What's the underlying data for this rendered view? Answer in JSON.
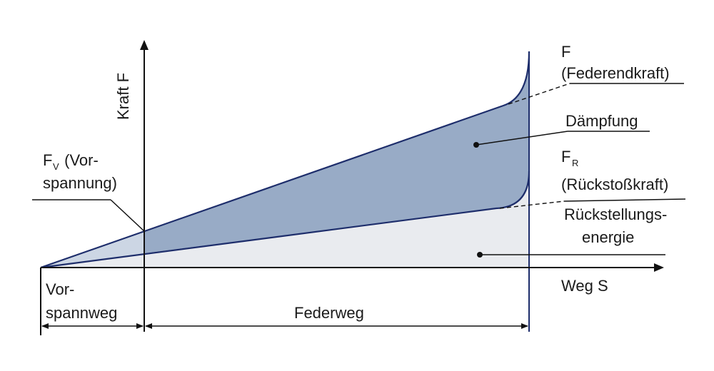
{
  "colors": {
    "outline": "#1d2d6b",
    "damping_fill": "#98abc6",
    "return_fill": "#e9ebef",
    "preload_fill": "#ccd6e4",
    "text": "#1a1a1a"
  },
  "axes": {
    "y_label": "Kraft F",
    "x_label": "Weg S"
  },
  "labels": {
    "f_title": "F",
    "f_sub": "(Federendkraft)",
    "daempfung": "Dämpfung",
    "fr_main": "F",
    "fr_subscript": "R",
    "fr_sub": "(Rückstoßkraft)",
    "rueck_line1": "Rückstellungs-",
    "rueck_line2": "energie",
    "fv_main": "F",
    "fv_subscript": "V",
    "fv_rest": " (Vor-",
    "fv_line2": "spannung)"
  },
  "dimensions": {
    "vorspannweg_line1": "Vor-",
    "vorspannweg_line2": "spannweg",
    "federweg": "Federweg"
  }
}
